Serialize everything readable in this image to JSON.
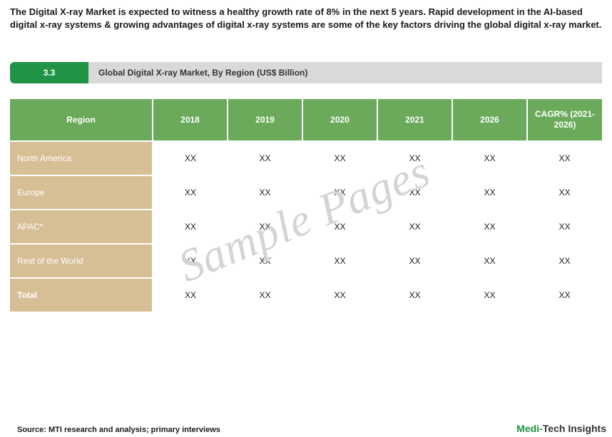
{
  "intro_text": "The Digital X-ray Market is expected to witness a healthy growth rate of 8% in the next 5 years. Rapid development in the AI-based digital x-ray systems & growing advantages of digital x-ray systems are some of the key factors driving the global digital x-ray market.",
  "section": {
    "number": "3.3",
    "title": "Global Digital X-ray Market, By Region (US$ Billion)"
  },
  "table": {
    "columns": [
      "Region",
      "2018",
      "2019",
      "2020",
      "2021",
      "2026",
      "CAGR%\n(2021-2026)"
    ],
    "rows": [
      [
        "North America",
        "XX",
        "XX",
        "XX",
        "XX",
        "XX",
        "XX"
      ],
      [
        "Europe",
        "XX",
        "XX",
        "XX",
        "XX",
        "XX",
        "XX"
      ],
      [
        "APAC*",
        "XX",
        "XX",
        "XX",
        "XX",
        "XX",
        "XX"
      ],
      [
        "Rest of the World",
        "XX",
        "XX",
        "XX",
        "XX",
        "XX",
        "XX"
      ],
      [
        "Total",
        "XX",
        "XX",
        "XX",
        "XX",
        "XX",
        "XX"
      ]
    ],
    "header_bg": "#6aaa5a",
    "header_text_color": "#ffffff",
    "row_label_bg": "#d6be95",
    "row_label_text_color": "#ffffff",
    "cell_text_color": "#1a1a1a",
    "background_color": "#ffffff"
  },
  "source_text": "Source: MTI research and analysis; primary interviews",
  "brand": {
    "part1": "Medi-",
    "part2": "Tech Insights"
  },
  "watermark_text": "Sample Pages",
  "colors": {
    "accent_green": "#1f9447",
    "section_bar_grey": "#d9d9d9",
    "text_primary": "#1a1a1a"
  }
}
